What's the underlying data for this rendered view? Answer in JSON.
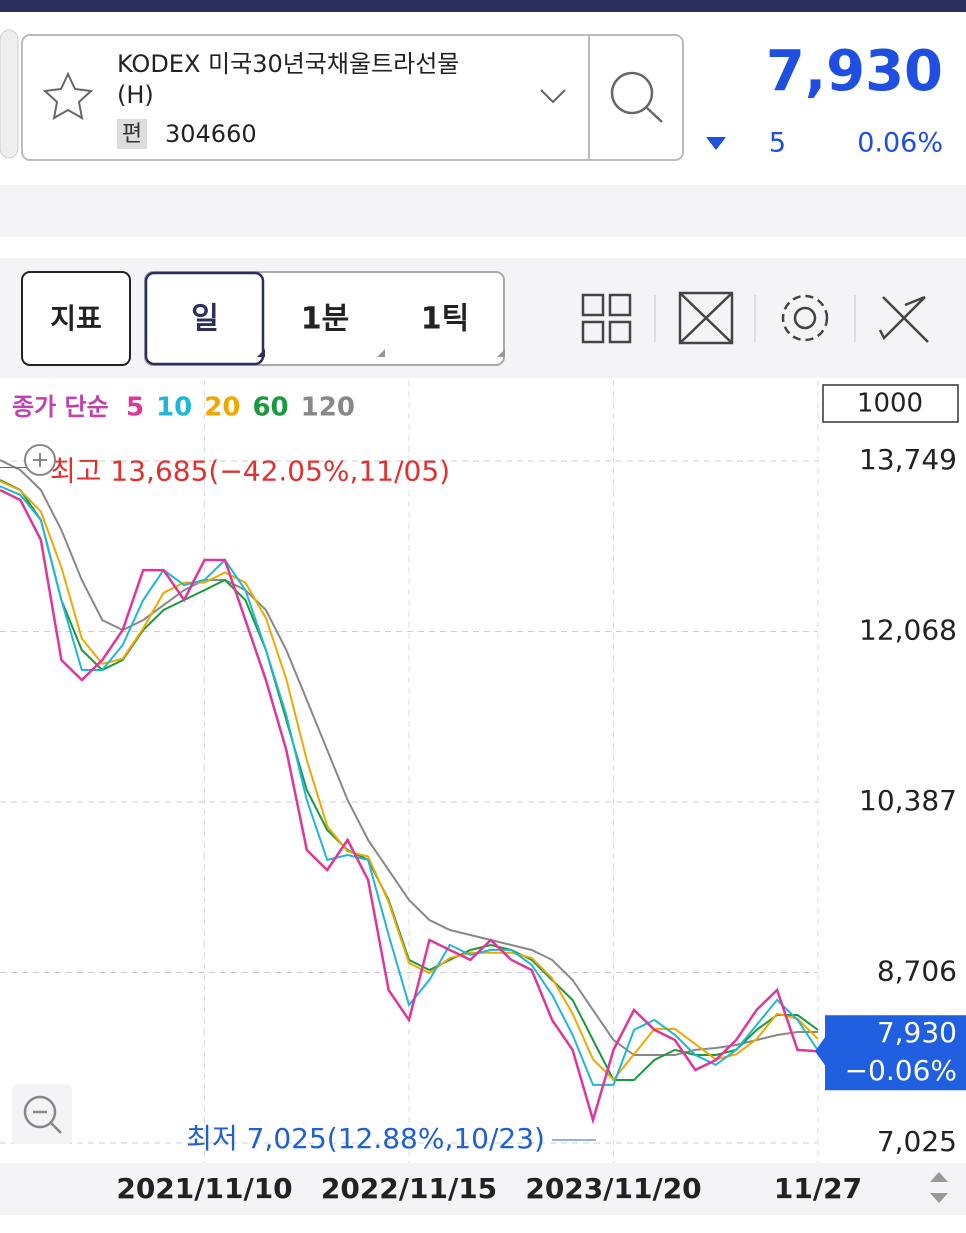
{
  "header": {
    "name": "KODEX 미국30년국채울트라선물",
    "name_suffix": "(H)",
    "badge": "편",
    "code": "304660",
    "price": "7,930",
    "change": "5",
    "change_rate": "0.06%"
  },
  "toolbar": {
    "indicator": "지표",
    "tabs": [
      "일",
      "1분",
      "1틱"
    ],
    "count": "1000"
  },
  "chart_data": {
    "type": "line",
    "legend_title": "종가 단순",
    "categories": [
      null,
      null,
      null,
      null,
      null,
      null,
      null,
      null,
      null,
      null,
      "2021/11/10",
      null,
      null,
      null,
      null,
      null,
      null,
      null,
      null,
      null,
      "2022/11/15",
      null,
      null,
      null,
      null,
      null,
      null,
      null,
      null,
      null,
      "2023/11/20",
      null,
      null,
      null,
      null,
      null,
      null,
      null,
      null,
      null,
      "11/27"
    ],
    "series": [
      {
        "name": "5",
        "color": "#e0359a",
        "values": [
          13463,
          13364,
          12970,
          11787,
          11590,
          11787,
          12083,
          12674,
          12674,
          12379,
          12773,
          12773,
          12181,
          11590,
          10900,
          9914,
          9717,
          10013,
          9619,
          8534,
          8238,
          9027,
          8928,
          8830,
          9027,
          8830,
          8731,
          8238,
          7943,
          7252,
          7943,
          8337,
          8140,
          8041,
          7745,
          7844,
          8041,
          8337,
          8534,
          7943,
          7930
        ]
      },
      {
        "name": "10",
        "color": "#1fb6d8",
        "values": [
          13500,
          13414,
          13167,
          12379,
          11689,
          11689,
          11935,
          12379,
          12674,
          12527,
          12576,
          12773,
          12477,
          11886,
          11245,
          10407,
          9816,
          9865,
          9816,
          9077,
          8386,
          8633,
          8978,
          8879,
          8929,
          8929,
          8781,
          8485,
          8091,
          7598,
          7598,
          8140,
          8239,
          8091,
          7893,
          7795,
          7943,
          8189,
          8436,
          8239,
          7937
        ]
      },
      {
        "name": "20",
        "color": "#f0a800",
        "values": [
          13550,
          13460,
          13250,
          12700,
          12000,
          11750,
          11800,
          12100,
          12450,
          12550,
          12550,
          12650,
          12550,
          12200,
          11600,
          10800,
          10150,
          9900,
          9850,
          9400,
          8800,
          8700,
          8850,
          8900,
          8900,
          8900,
          8850,
          8650,
          8300,
          7850,
          7650,
          7900,
          8150,
          8150,
          8000,
          7850,
          7900,
          8050,
          8300,
          8250,
          8050
        ]
      },
      {
        "name": "60",
        "color": "#1a9a3c",
        "values": [
          13562,
          13463,
          13167,
          12379,
          11886,
          11689,
          11787,
          12083,
          12280,
          12379,
          12477,
          12576,
          12379,
          11886,
          11196,
          10506,
          10111,
          9914,
          9816,
          9421,
          8830,
          8731,
          8830,
          8928,
          8977,
          8928,
          8830,
          8632,
          8435,
          8041,
          7646,
          7646,
          7844,
          7943,
          7893,
          7893,
          7943,
          8140,
          8287,
          8287,
          8140
        ]
      },
      {
        "name": "120",
        "color": "#888888",
        "values": [
          13759,
          13660,
          13463,
          13069,
          12576,
          12181,
          12083,
          12181,
          12329,
          12477,
          12576,
          12576,
          12477,
          12280,
          11886,
          11393,
          10900,
          10407,
          10013,
          9717,
          9421,
          9224,
          9125,
          9076,
          9027,
          8977,
          8928,
          8830,
          8632,
          8336,
          8041,
          7893,
          7893,
          7893,
          7943,
          7962,
          7991,
          8041,
          8090,
          8120,
          8120
        ]
      }
    ],
    "ylim": [
      6828,
      14548
    ],
    "yticks": [
      {
        "value": 7025,
        "label": "7,025"
      },
      {
        "value": 8706,
        "label": "8,706"
      },
      {
        "value": 10387,
        "label": "10,387"
      },
      {
        "value": 12068,
        "label": "12,068"
      },
      {
        "value": 13749,
        "label": "13,749"
      }
    ],
    "grid": true,
    "high": {
      "value": 13685,
      "label": "최고 13,685(−42.05%,11/05)"
    },
    "low": {
      "value": 7025,
      "label": "최저 7,025(12.88%,10/23)"
    },
    "current": {
      "value": 7930,
      "label": "7,930",
      "change": "−0.06%"
    }
  }
}
